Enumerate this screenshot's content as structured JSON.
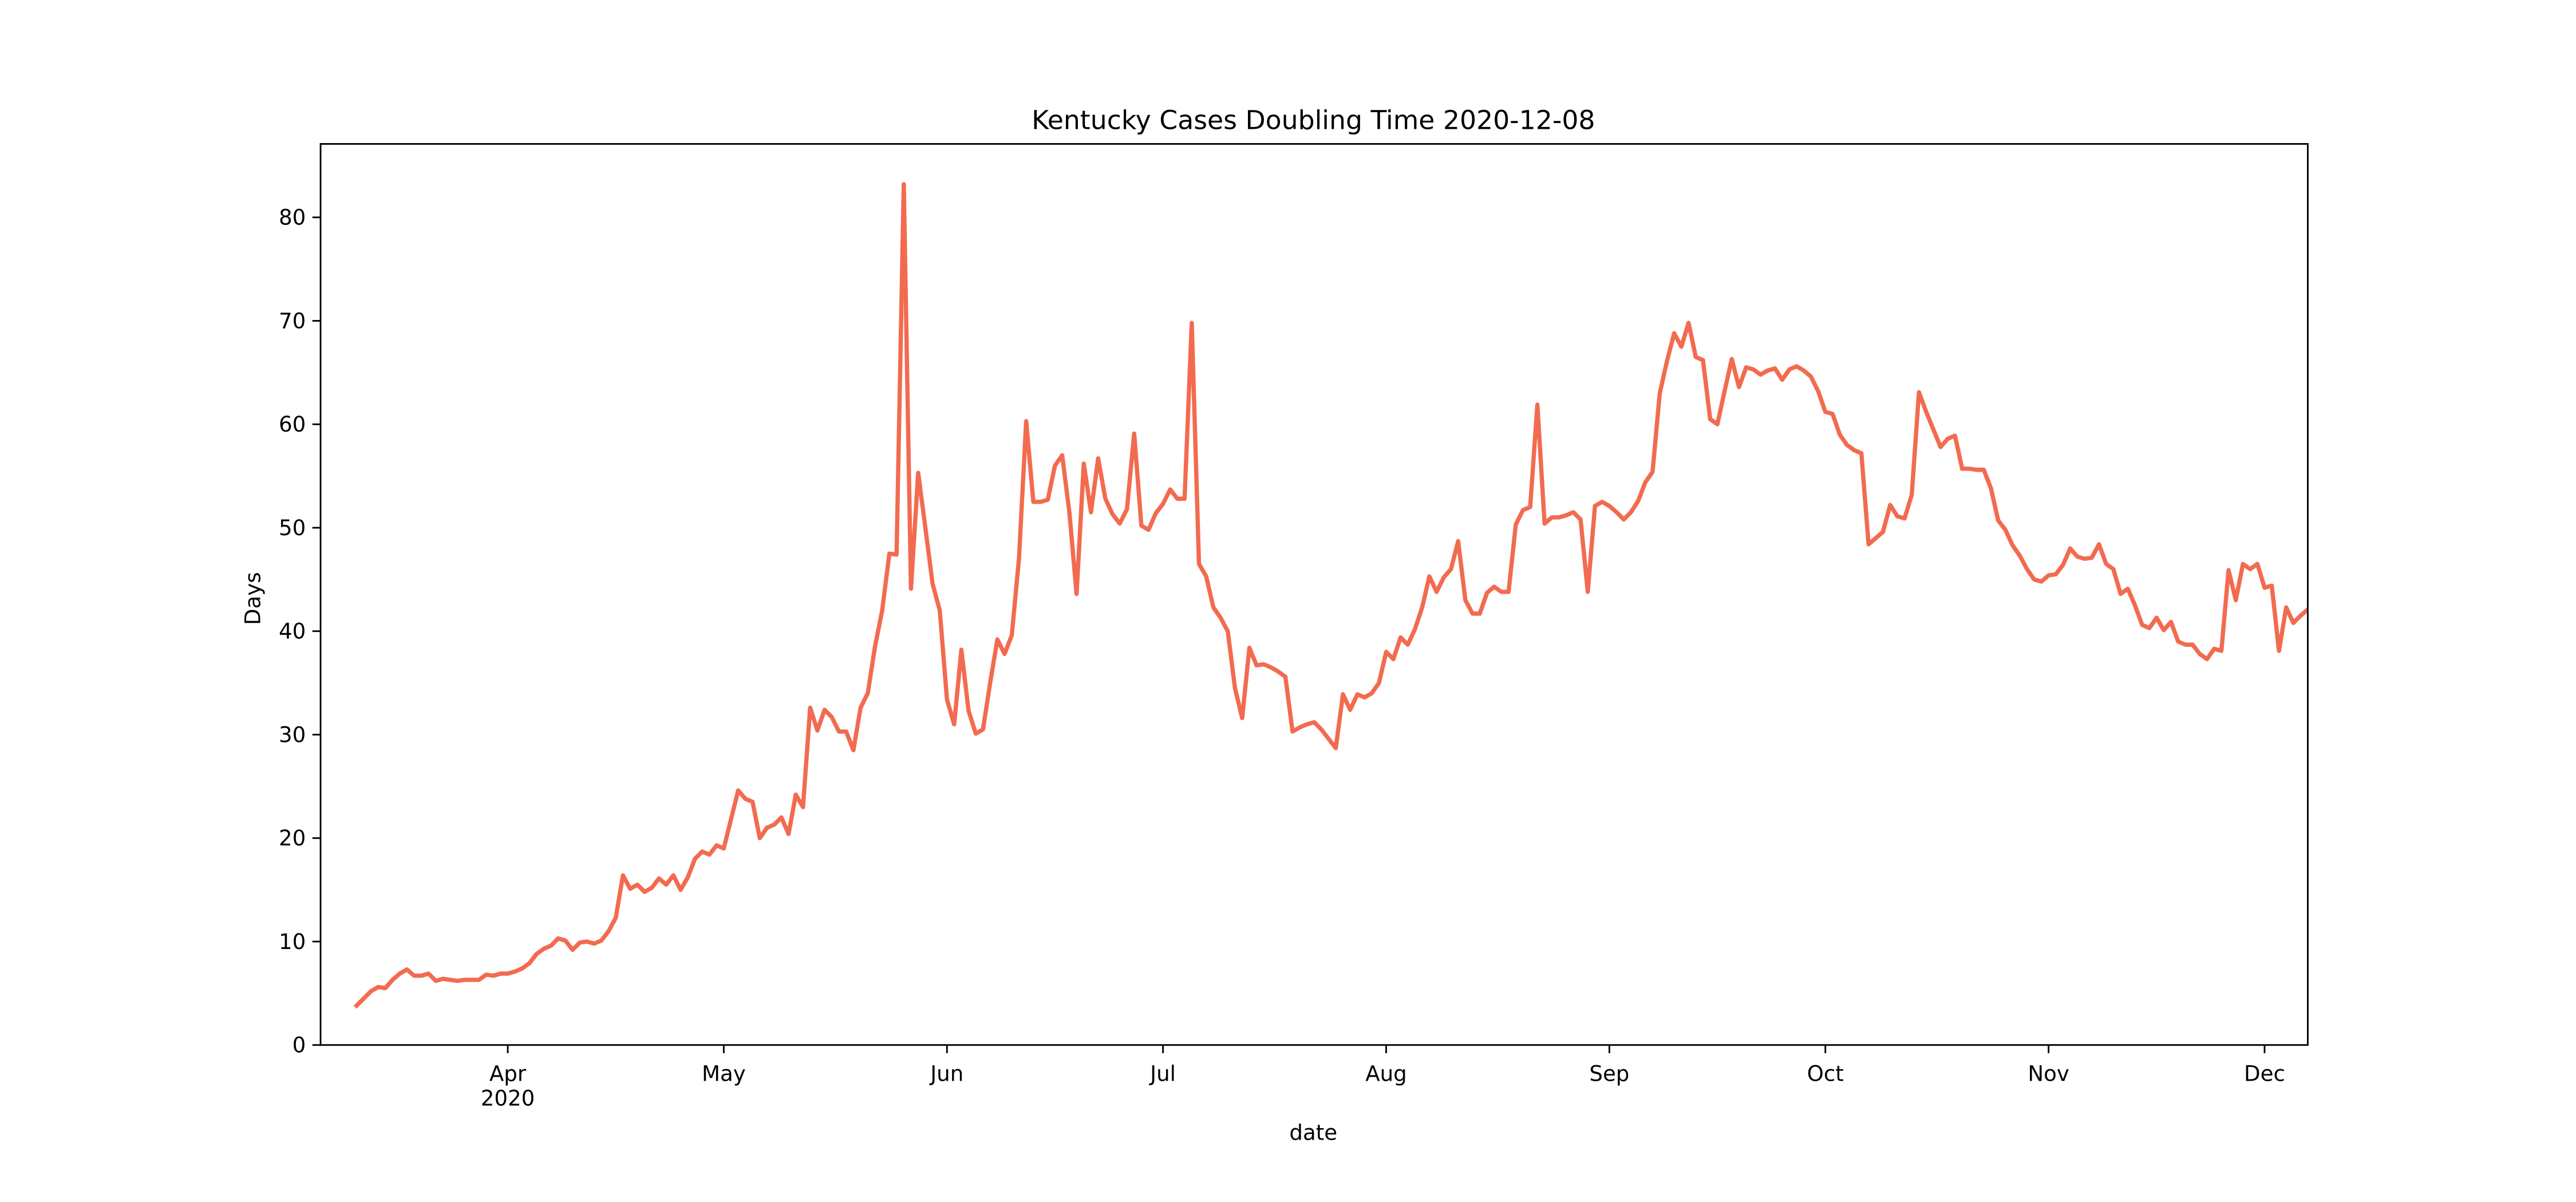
{
  "chart_data": {
    "type": "line",
    "title": "Kentucky Cases Doubling Time 2020-12-08",
    "xlabel": "date",
    "ylabel": "Days",
    "color": "#f26b50",
    "x": [
      "2020-03-11",
      "2020-03-12",
      "2020-03-13",
      "2020-03-14",
      "2020-03-15",
      "2020-03-16",
      "2020-03-17",
      "2020-03-18",
      "2020-03-19",
      "2020-03-20",
      "2020-03-21",
      "2020-03-22",
      "2020-03-23",
      "2020-03-24",
      "2020-03-25",
      "2020-03-26",
      "2020-03-27",
      "2020-03-28",
      "2020-03-29",
      "2020-03-30",
      "2020-03-31",
      "2020-04-01",
      "2020-04-02",
      "2020-04-03",
      "2020-04-04",
      "2020-04-05",
      "2020-04-06",
      "2020-04-07",
      "2020-04-08",
      "2020-04-09",
      "2020-04-10",
      "2020-04-11",
      "2020-04-12",
      "2020-04-13",
      "2020-04-14",
      "2020-04-15",
      "2020-04-16",
      "2020-04-17",
      "2020-04-18",
      "2020-04-19",
      "2020-04-20",
      "2020-04-21",
      "2020-04-22",
      "2020-04-23",
      "2020-04-24",
      "2020-04-25",
      "2020-04-26",
      "2020-04-27",
      "2020-04-28",
      "2020-04-29",
      "2020-04-30",
      "2020-05-01",
      "2020-05-02",
      "2020-05-03",
      "2020-05-04",
      "2020-05-05",
      "2020-05-06",
      "2020-05-07",
      "2020-05-08",
      "2020-05-09",
      "2020-05-10",
      "2020-05-11",
      "2020-05-12",
      "2020-05-13",
      "2020-05-14",
      "2020-05-15",
      "2020-05-16",
      "2020-05-17",
      "2020-05-18",
      "2020-05-19",
      "2020-05-20",
      "2020-05-21",
      "2020-05-22",
      "2020-05-23",
      "2020-05-24",
      "2020-05-25",
      "2020-05-26",
      "2020-05-27",
      "2020-05-28",
      "2020-05-29",
      "2020-05-30",
      "2020-05-31",
      "2020-06-01",
      "2020-06-02",
      "2020-06-03",
      "2020-06-04",
      "2020-06-05",
      "2020-06-06",
      "2020-06-07",
      "2020-06-08",
      "2020-06-09",
      "2020-06-10",
      "2020-06-11",
      "2020-06-12",
      "2020-06-13",
      "2020-06-14",
      "2020-06-15",
      "2020-06-16",
      "2020-06-17",
      "2020-06-18",
      "2020-06-19",
      "2020-06-20",
      "2020-06-21",
      "2020-06-22",
      "2020-06-23",
      "2020-06-24",
      "2020-06-25",
      "2020-06-26",
      "2020-06-27",
      "2020-06-28",
      "2020-06-29",
      "2020-06-30",
      "2020-07-01",
      "2020-07-02",
      "2020-07-03",
      "2020-07-04",
      "2020-07-05",
      "2020-07-06",
      "2020-07-07",
      "2020-07-08",
      "2020-07-09",
      "2020-07-10",
      "2020-07-11",
      "2020-07-12",
      "2020-07-13",
      "2020-07-14",
      "2020-07-15",
      "2020-07-16",
      "2020-07-17",
      "2020-07-18",
      "2020-07-19",
      "2020-07-20",
      "2020-07-21",
      "2020-07-22",
      "2020-07-23",
      "2020-07-24",
      "2020-07-25",
      "2020-07-26",
      "2020-07-27",
      "2020-07-28",
      "2020-07-29",
      "2020-07-30",
      "2020-07-31",
      "2020-08-01",
      "2020-08-02",
      "2020-08-03",
      "2020-08-04",
      "2020-08-05",
      "2020-08-06",
      "2020-08-07",
      "2020-08-08",
      "2020-08-09",
      "2020-08-10",
      "2020-08-11",
      "2020-08-12",
      "2020-08-13",
      "2020-08-14",
      "2020-08-15",
      "2020-08-16",
      "2020-08-17",
      "2020-08-18",
      "2020-08-19",
      "2020-08-20",
      "2020-08-21",
      "2020-08-22",
      "2020-08-23",
      "2020-08-24",
      "2020-08-25",
      "2020-08-26",
      "2020-08-27",
      "2020-08-28",
      "2020-08-29",
      "2020-08-30",
      "2020-08-31",
      "2020-09-01",
      "2020-09-02",
      "2020-09-03",
      "2020-09-04",
      "2020-09-05",
      "2020-09-06",
      "2020-09-07",
      "2020-09-08",
      "2020-09-09",
      "2020-09-10",
      "2020-09-11",
      "2020-09-12",
      "2020-09-13",
      "2020-09-14",
      "2020-09-15",
      "2020-09-16",
      "2020-09-17",
      "2020-09-18",
      "2020-09-19",
      "2020-09-20",
      "2020-09-21",
      "2020-09-22",
      "2020-09-23",
      "2020-09-24",
      "2020-09-25",
      "2020-09-26",
      "2020-09-27",
      "2020-09-28",
      "2020-09-29",
      "2020-09-30",
      "2020-10-01",
      "2020-10-02",
      "2020-10-03",
      "2020-10-04",
      "2020-10-05",
      "2020-10-06",
      "2020-10-07",
      "2020-10-08",
      "2020-10-09",
      "2020-10-10",
      "2020-10-11",
      "2020-10-12",
      "2020-10-13",
      "2020-10-14",
      "2020-10-15",
      "2020-10-16",
      "2020-10-17",
      "2020-10-18",
      "2020-10-19",
      "2020-10-20",
      "2020-10-21",
      "2020-10-22",
      "2020-10-23",
      "2020-10-24",
      "2020-10-25",
      "2020-10-26",
      "2020-10-27",
      "2020-10-28",
      "2020-10-29",
      "2020-10-30",
      "2020-10-31",
      "2020-11-01",
      "2020-11-02",
      "2020-11-03",
      "2020-11-04",
      "2020-11-05",
      "2020-11-06",
      "2020-11-07",
      "2020-11-08",
      "2020-11-09",
      "2020-11-10",
      "2020-11-11",
      "2020-11-12",
      "2020-11-13",
      "2020-11-14",
      "2020-11-15",
      "2020-11-16",
      "2020-11-17",
      "2020-11-18",
      "2020-11-19",
      "2020-11-20",
      "2020-11-21",
      "2020-11-22",
      "2020-11-23",
      "2020-11-24",
      "2020-11-25",
      "2020-11-26",
      "2020-11-27",
      "2020-11-28",
      "2020-11-29",
      "2020-11-30",
      "2020-12-01",
      "2020-12-02",
      "2020-12-03",
      "2020-12-04",
      "2020-12-05",
      "2020-12-06",
      "2020-12-07"
    ],
    "values": [
      3.8,
      4.5,
      5.2,
      5.6,
      5.5,
      6.3,
      6.9,
      7.3,
      6.7,
      6.7,
      6.9,
      6.2,
      6.4,
      6.3,
      6.2,
      6.3,
      6.3,
      6.3,
      6.8,
      6.7,
      6.9,
      6.9,
      7.1,
      7.4,
      7.9,
      8.8,
      9.3,
      9.6,
      10.3,
      10.1,
      9.2,
      9.9,
      10.0,
      9.8,
      10.1,
      11.0,
      12.3,
      16.4,
      15.1,
      15.5,
      14.8,
      15.2,
      16.1,
      15.5,
      16.4,
      15.0,
      16.2,
      18.0,
      18.7,
      18.4,
      19.3,
      19.0,
      21.8,
      24.6,
      23.8,
      23.5,
      20.0,
      21.0,
      21.3,
      22.0,
      20.4,
      24.2,
      23.0,
      32.6,
      30.4,
      32.4,
      31.7,
      30.3,
      30.3,
      28.5,
      32.6,
      34.0,
      38.5,
      42.0,
      47.5,
      47.4,
      83.2,
      44.1,
      55.3,
      50.0,
      44.6,
      42.0,
      33.4,
      31.0,
      38.2,
      32.3,
      30.1,
      30.5,
      35.0,
      39.2,
      37.8,
      39.6,
      47.0,
      60.3,
      52.5,
      52.5,
      52.7,
      56.0,
      57.0,
      51.5,
      43.6,
      56.2,
      51.5,
      56.7,
      52.8,
      51.3,
      50.4,
      51.8,
      59.1,
      50.2,
      49.8,
      51.4,
      52.3,
      53.7,
      52.8,
      52.8,
      69.8,
      46.5,
      45.3,
      42.3,
      41.3,
      40.0,
      34.5,
      31.6,
      38.4,
      36.7,
      36.8,
      36.5,
      36.1,
      35.6,
      30.3,
      30.7,
      31.0,
      31.2,
      30.5,
      29.6,
      28.7,
      33.9,
      32.4,
      33.9,
      33.6,
      34.0,
      35.0,
      38.0,
      37.3,
      39.4,
      38.7,
      40.2,
      42.3,
      45.3,
      43.8,
      45.2,
      46.0,
      48.7,
      43.0,
      41.7,
      41.7,
      43.7,
      44.3,
      43.8,
      43.8,
      50.3,
      51.7,
      52.0,
      61.9,
      50.4,
      51.0,
      51.0,
      51.2,
      51.5,
      50.8,
      43.8,
      52.1,
      52.5,
      52.1,
      51.5,
      50.8,
      51.5,
      52.6,
      54.4,
      55.4,
      63.0,
      66.1,
      68.8,
      67.5,
      69.8,
      66.5,
      66.2,
      60.5,
      60.0,
      63.2,
      66.3,
      63.6,
      65.5,
      65.3,
      64.8,
      65.2,
      65.4,
      64.3,
      65.3,
      65.6,
      65.2,
      64.6,
      63.2,
      61.2,
      61.0,
      59.0,
      58.0,
      57.5,
      57.2,
      48.4,
      49.0,
      49.6,
      52.2,
      51.1,
      50.9,
      53.2,
      63.1,
      61.2,
      59.5,
      57.8,
      58.6,
      58.9,
      55.7,
      55.7,
      55.6,
      55.6,
      53.8,
      50.7,
      49.8,
      48.3,
      47.3,
      46.0,
      45.0,
      44.8,
      45.4,
      45.5,
      46.4,
      48.0,
      47.2,
      47.0,
      47.1,
      48.4,
      46.5,
      46.0,
      43.6,
      44.1,
      42.5,
      40.6,
      40.3,
      41.3,
      40.1,
      40.9,
      39.0,
      38.7,
      38.7,
      37.8,
      37.3,
      38.3,
      38.1,
      45.9,
      43.0,
      46.5,
      46.0,
      46.5,
      44.2,
      44.4,
      38.1,
      42.3,
      40.8,
      41.5,
      42.1
    ],
    "xlim": [
      "2020-03-06",
      "2020-12-07"
    ],
    "xticks": [
      {
        "value": "2020-04-01",
        "label": "Apr\n2020"
      },
      {
        "value": "2020-05-01",
        "label": "May"
      },
      {
        "value": "2020-06-01",
        "label": "Jun"
      },
      {
        "value": "2020-07-01",
        "label": "Jul"
      },
      {
        "value": "2020-08-01",
        "label": "Aug"
      },
      {
        "value": "2020-09-01",
        "label": "Sep"
      },
      {
        "value": "2020-10-01",
        "label": "Oct"
      },
      {
        "value": "2020-11-01",
        "label": "Nov"
      },
      {
        "value": "2020-12-01",
        "label": "Dec"
      }
    ],
    "ylim": [
      0,
      87.1
    ],
    "yticks": [
      0,
      10,
      20,
      30,
      40,
      50,
      60,
      70,
      80
    ],
    "grid": false
  }
}
